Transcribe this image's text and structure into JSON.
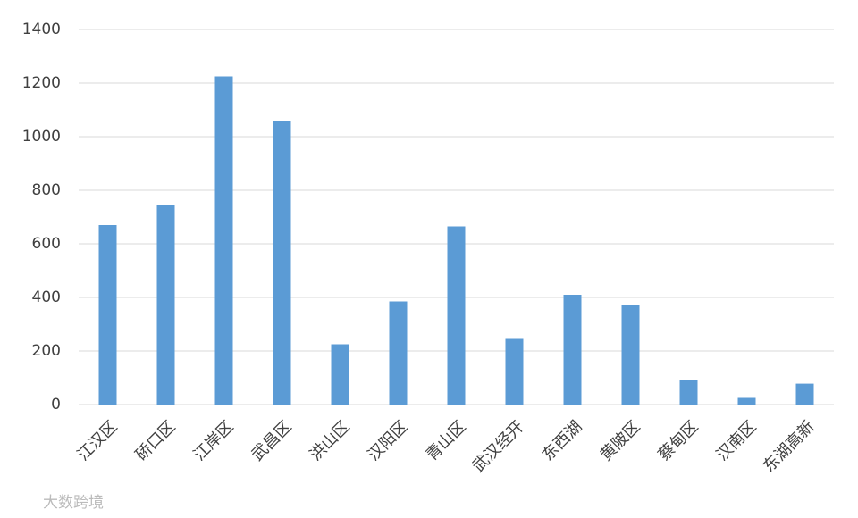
{
  "chart_data": {
    "type": "bar",
    "categories": [
      "江汉区",
      "硚口区",
      "江岸区",
      "武昌区",
      "洪山区",
      "汉阳区",
      "青山区",
      "武汉经开",
      "东西湖",
      "黄陂区",
      "蔡甸区",
      "汉南区",
      "东湖高新"
    ],
    "values": [
      670,
      745,
      1225,
      1060,
      225,
      385,
      665,
      245,
      410,
      370,
      90,
      25,
      78
    ],
    "color": "#5b9bd5",
    "ylim": [
      0,
      1400
    ],
    "yticks": [
      0,
      200,
      400,
      600,
      800,
      1000,
      1200,
      1400
    ],
    "grid": true
  },
  "watermark": "大数跨境"
}
